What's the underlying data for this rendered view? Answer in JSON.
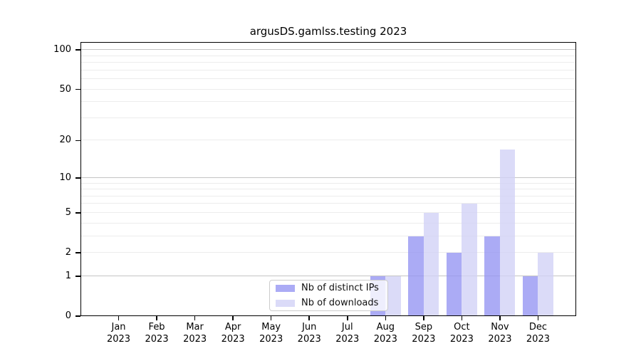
{
  "title": "argusDS.gamlss.testing 2023",
  "chart_data": {
    "type": "bar",
    "title": "argusDS.gamlss.testing 2023",
    "categories": [
      "Jan 2023",
      "Feb 2023",
      "Mar 2023",
      "Apr 2023",
      "May 2023",
      "Jun 2023",
      "Jul 2023",
      "Aug 2023",
      "Sep 2023",
      "Oct 2023",
      "Nov 2023",
      "Dec 2023"
    ],
    "series": [
      {
        "name": "Nb of distinct IPs",
        "color": "#a9a9f5",
        "values": [
          0,
          0,
          0,
          0,
          0,
          0,
          0,
          1,
          3,
          2,
          3,
          1
        ]
      },
      {
        "name": "Nb of downloads",
        "color": "#d9d9f7",
        "values": [
          0,
          0,
          0,
          0,
          0,
          0,
          0,
          1,
          5,
          6,
          17,
          2
        ]
      }
    ],
    "yscale": "log1p",
    "yticks": [
      0,
      1,
      2,
      5,
      10,
      20,
      50,
      100
    ],
    "ylim": [
      0,
      115
    ],
    "xlabel": "",
    "ylabel": "",
    "grid": "horizontal log major+minor",
    "legend_position": "inside-bottom-center"
  },
  "legend": {
    "items": [
      {
        "label": "Nb of distinct IPs",
        "swatch": "#a9a9f5"
      },
      {
        "label": "Nb of downloads",
        "swatch": "#d9d9f7"
      }
    ]
  },
  "style": {
    "background": "#ffffff",
    "bar_fill_ips": "#9696f3",
    "bar_fill_downloads": "#d2d2f6",
    "bar_opacity": 0.8,
    "grid_major_color": "#c4c4c4",
    "grid_minor_color": "#ececec",
    "spine_color": "#000000",
    "legend_border_color": "#cccccc"
  }
}
